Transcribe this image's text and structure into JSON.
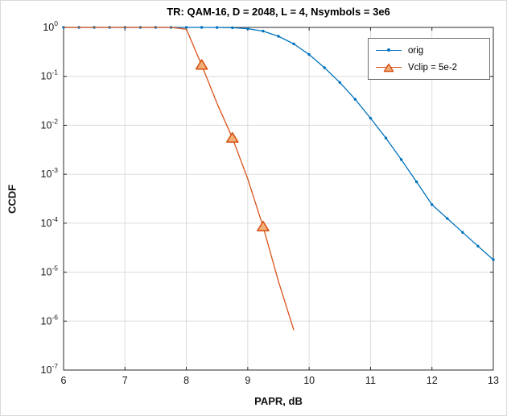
{
  "chart_data": {
    "type": "line",
    "title": "TR: QAM-16, D = 2048, L = 4, Nsymbols = 3e6",
    "xlabel": "PAPR, dB",
    "ylabel": "CCDF",
    "xlim": [
      6,
      13
    ],
    "x_ticks": [
      6,
      7,
      8,
      9,
      10,
      11,
      12,
      13
    ],
    "y_scale": "log",
    "y_tick_exponents": [
      0,
      -1,
      -2,
      -3,
      -4,
      -5,
      -6,
      -7
    ],
    "grid": true,
    "legend_position": "top-right",
    "series": [
      {
        "name": "orig",
        "color": "#0072BD",
        "marker": "dot",
        "x": [
          6,
          6.25,
          6.5,
          6.75,
          7,
          7.25,
          7.5,
          7.75,
          8,
          8.25,
          8.5,
          8.75,
          9,
          9.25,
          9.5,
          9.75,
          10,
          10.25,
          10.5,
          10.75,
          11,
          11.25,
          11.5,
          11.75,
          12,
          12.25,
          12.5,
          12.75,
          13
        ],
        "y": [
          1,
          1,
          1,
          1,
          1,
          1,
          1,
          1,
          1,
          0.9998,
          0.997,
          0.985,
          0.94,
          0.84,
          0.66,
          0.46,
          0.28,
          0.15,
          0.075,
          0.034,
          0.014,
          0.0055,
          0.002,
          0.0007,
          0.00024,
          0.000125,
          6.5e-05,
          3.4e-05,
          1.8e-05
        ]
      },
      {
        "name": "Vclip = 5e-2",
        "color": "#D95319",
        "marker": "triangle",
        "marker_fill": "#F2B079",
        "x": [
          6,
          6.25,
          6.5,
          6.75,
          7,
          7.25,
          7.5,
          7.75,
          8,
          8.25,
          8.5,
          8.75,
          9,
          9.25,
          9.5,
          9.75
        ],
        "y": [
          1,
          1,
          1,
          1,
          1,
          1,
          1,
          1,
          0.92,
          0.17,
          0.028,
          0.0055,
          0.0008,
          8.5e-05,
          6.5e-06,
          6.5e-07
        ],
        "marker_x": [
          8.25,
          8.75,
          9.25
        ],
        "marker_y": [
          0.17,
          0.0055,
          8.5e-05
        ]
      }
    ]
  }
}
